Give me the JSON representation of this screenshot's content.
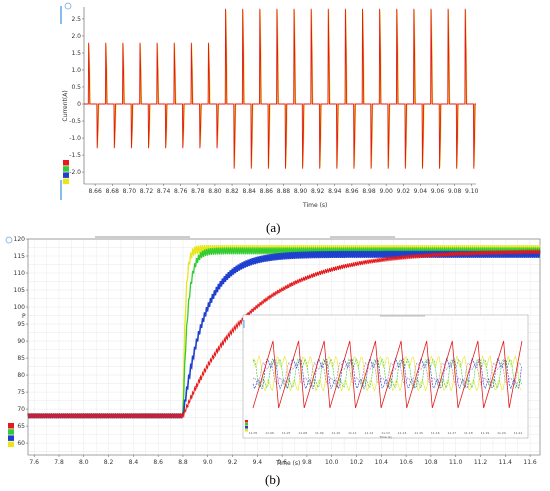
{
  "chart_data": [
    {
      "type": "line",
      "caption": "(a)",
      "xlabel": "Time (s)",
      "ylabel": "Current(A)",
      "xlim": [
        8.647,
        9.105
      ],
      "ylim": [
        -2.35,
        2.85
      ],
      "xticks": [
        8.66,
        8.68,
        8.7,
        8.72,
        8.74,
        8.76,
        8.78,
        8.8,
        8.82,
        8.84,
        8.86,
        8.88,
        8.9,
        8.92,
        8.94,
        8.96,
        8.98,
        9.0,
        9.02,
        9.04,
        9.06,
        9.08,
        9.1
      ],
      "xtick_labels": [
        "8.66",
        "8.68",
        "8.70",
        "8.72",
        "8.74",
        "8.76",
        "8.78",
        "8.80",
        "8.82",
        "8.84",
        "8.86",
        "8.88",
        "8.90",
        "8.92",
        "8.94",
        "8.96",
        "8.98",
        "9.00",
        "9.02",
        "9.04",
        "9.06",
        "9.08",
        "9.10"
      ],
      "yticks": [
        -2.0,
        -1.5,
        -1.0,
        -0.5,
        0,
        0.5,
        1.0,
        1.5,
        2.0,
        2.5
      ],
      "ytick_labels": [
        "-2.0",
        "-1.5",
        "-1.0",
        "-0.5",
        "0",
        "0.5",
        "1.0",
        "1.5",
        "2.0",
        "2.5"
      ],
      "grid": false,
      "legend_colors": [
        "#e41a1c",
        "#33cc33",
        "#1f3fcf",
        "#e6e61a"
      ],
      "series": [
        {
          "color": "#e41a1c",
          "period": 0.02,
          "first_pulse_time": 8.652,
          "step_time": 8.81,
          "positive_peak_before": 1.8,
          "negative_peak_before": -1.3,
          "positive_peak_after": 2.8,
          "negative_peak_after": -1.9
        },
        {
          "color": "#e6e61a",
          "period": 0.02,
          "first_pulse_time": 8.652,
          "step_time": 8.81,
          "positive_peak_before": 1.75,
          "negative_peak_before": -1.25,
          "positive_peak_after": 2.75,
          "negative_peak_after": -1.85
        }
      ]
    },
    {
      "type": "line",
      "caption": "(b)",
      "xlabel": "Time (s)",
      "ylabel": "P",
      "xlim": [
        7.55,
        11.68
      ],
      "ylim": [
        56.5,
        120
      ],
      "xticks": [
        7.6,
        7.8,
        8.0,
        8.2,
        8.4,
        8.6,
        8.8,
        9.0,
        9.2,
        9.4,
        9.6,
        9.8,
        10.0,
        10.2,
        10.4,
        10.6,
        10.8,
        11.0,
        11.2,
        11.4,
        11.6
      ],
      "xtick_labels": [
        "7.6",
        "7.8",
        "8.0",
        "8.2",
        "8.4",
        "8.6",
        "8.8",
        "9.0",
        "9.2",
        "9.4",
        "9.6",
        "9.8",
        "10.0",
        "10.2",
        "10.4",
        "10.6",
        "10.8",
        "11.0",
        "11.2",
        "11.4",
        "11.6"
      ],
      "yticks": [
        60,
        65,
        70,
        75,
        80,
        85,
        90,
        95,
        100,
        105,
        110,
        115,
        120
      ],
      "ytick_labels": [
        "60",
        "65",
        "70",
        "75",
        "80",
        "85",
        "90",
        "95",
        "100",
        "105",
        "110",
        "115",
        "120"
      ],
      "grid": true,
      "legend_colors": [
        "#e41a1c",
        "#33cc33",
        "#1f3fcf",
        "#e6e61a"
      ],
      "series": [
        {
          "color": "#e6e61a",
          "initial": 68,
          "final": 117,
          "step_time": 8.8,
          "time_constant": 0.02,
          "ripple": 1.2
        },
        {
          "color": "#33cc33",
          "initial": 68,
          "final": 116.5,
          "step_time": 8.8,
          "time_constant": 0.04,
          "ripple": 1.0
        },
        {
          "color": "#1f3fcf",
          "initial": 68,
          "final": 115.5,
          "step_time": 8.8,
          "time_constant": 0.18,
          "ripple": 1.0
        },
        {
          "color": "#e41a1c",
          "initial": 68,
          "final": 116.5,
          "step_time": 8.8,
          "time_constant": 0.55,
          "ripple": 0.6
        }
      ],
      "inset": {
        "xlabel": "Time (s)",
        "xtick_labels": [
          "11.05",
          "11.06",
          "11.07",
          "11.08",
          "11.09",
          "11.10",
          "11.11",
          "11.12",
          "11.13",
          "11.14",
          "11.15",
          "11.16",
          "11.17",
          "11.18",
          "11.19",
          "11.20",
          "11.21"
        ]
      }
    }
  ]
}
